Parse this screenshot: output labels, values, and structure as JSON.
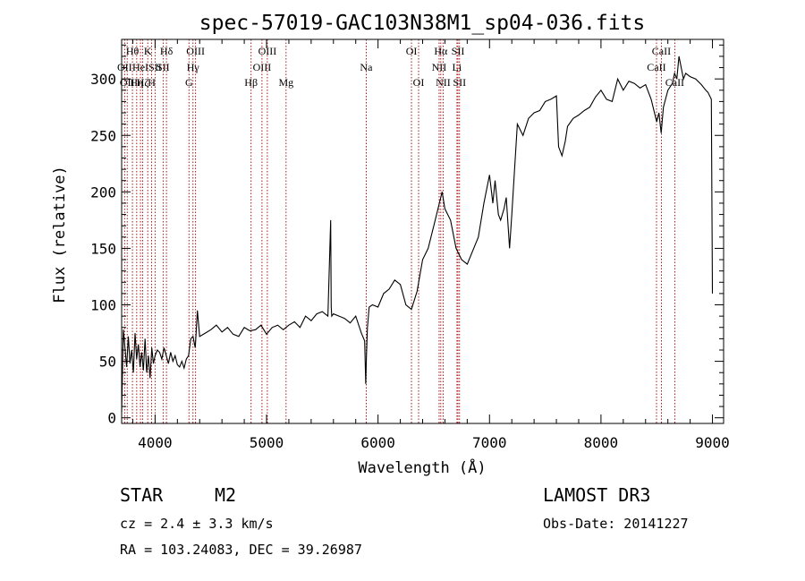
{
  "chart_data": {
    "type": "line",
    "title": "spec-57019-GAC103N38M1_sp04-036.fits",
    "xlabel": "Wavelength (Å)",
    "ylabel": "Flux (relative)",
    "xlim": [
      3700,
      9100
    ],
    "ylim": [
      -5,
      335
    ],
    "x_ticks": [
      4000,
      5000,
      6000,
      7000,
      8000,
      9000
    ],
    "y_ticks": [
      0,
      50,
      100,
      150,
      200,
      250,
      300
    ],
    "series": [
      {
        "name": "flux",
        "x": [
          3700,
          3715,
          3730,
          3745,
          3760,
          3775,
          3790,
          3805,
          3820,
          3835,
          3850,
          3865,
          3880,
          3895,
          3910,
          3925,
          3940,
          3955,
          3970,
          3985,
          4000,
          4020,
          4040,
          4060,
          4080,
          4100,
          4120,
          4140,
          4160,
          4180,
          4200,
          4220,
          4240,
          4260,
          4280,
          4300,
          4320,
          4340,
          4360,
          4380,
          4400,
          4450,
          4500,
          4550,
          4600,
          4650,
          4700,
          4750,
          4800,
          4850,
          4900,
          4950,
          5000,
          5050,
          5100,
          5150,
          5200,
          5250,
          5300,
          5350,
          5400,
          5450,
          5500,
          5550,
          5575,
          5580,
          5585,
          5600,
          5650,
          5700,
          5750,
          5800,
          5850,
          5880,
          5890,
          5896,
          5905,
          5920,
          5950,
          6000,
          6050,
          6100,
          6150,
          6200,
          6250,
          6300,
          6350,
          6400,
          6450,
          6500,
          6550,
          6575,
          6600,
          6650,
          6700,
          6750,
          6800,
          6850,
          6900,
          6950,
          7000,
          7030,
          7050,
          7080,
          7100,
          7130,
          7150,
          7180,
          7200,
          7250,
          7300,
          7350,
          7400,
          7450,
          7500,
          7550,
          7600,
          7620,
          7650,
          7680,
          7700,
          7750,
          7800,
          7850,
          7900,
          7950,
          8000,
          8050,
          8100,
          8150,
          8200,
          8250,
          8300,
          8350,
          8400,
          8450,
          8500,
          8520,
          8540,
          8560,
          8600,
          8640,
          8660,
          8680,
          8700,
          8720,
          8740,
          8760,
          8800,
          8850,
          8900,
          8940,
          8960,
          8990,
          9000
        ],
        "values": [
          5,
          78,
          62,
          45,
          72,
          48,
          60,
          40,
          75,
          52,
          65,
          45,
          58,
          42,
          70,
          40,
          55,
          35,
          62,
          48,
          55,
          60,
          58,
          52,
          62,
          55,
          48,
          58,
          50,
          55,
          47,
          45,
          50,
          44,
          52,
          55,
          70,
          72,
          62,
          95,
          72,
          75,
          78,
          82,
          76,
          80,
          74,
          72,
          80,
          77,
          78,
          82,
          74,
          80,
          82,
          78,
          82,
          85,
          80,
          90,
          86,
          92,
          94,
          90,
          175,
          98,
          90,
          92,
          90,
          88,
          84,
          90,
          75,
          68,
          30,
          55,
          80,
          98,
          100,
          98,
          110,
          114,
          122,
          118,
          100,
          96,
          112,
          140,
          150,
          170,
          190,
          200,
          185,
          175,
          150,
          140,
          136,
          148,
          160,
          190,
          215,
          190,
          210,
          180,
          175,
          185,
          195,
          150,
          180,
          260,
          250,
          265,
          270,
          272,
          280,
          282,
          285,
          240,
          232,
          245,
          258,
          265,
          268,
          272,
          275,
          284,
          290,
          282,
          280,
          300,
          290,
          298,
          296,
          292,
          295,
          282,
          262,
          270,
          252,
          275,
          290,
          296,
          305,
          300,
          320,
          310,
          300,
          305,
          302,
          300,
          295,
          290,
          288,
          282,
          110
        ]
      }
    ],
    "reference_lines": [
      {
        "x": 3727,
        "labels": [
          "OII"
        ],
        "rows": [
          1
        ]
      },
      {
        "x": 3750,
        "labels": [
          "OII"
        ],
        "rows": [
          2
        ]
      },
      {
        "x": 3797,
        "labels": [
          "Hθ"
        ],
        "rows": [
          0
        ]
      },
      {
        "x": 3835,
        "labels": [
          "Hη"
        ],
        "rows": [
          2
        ]
      },
      {
        "x": 3869,
        "labels": [
          "HeI"
        ],
        "rows": [
          1
        ]
      },
      {
        "x": 3889,
        "labels": [
          "Hζ"
        ],
        "rows": [
          2
        ]
      },
      {
        "x": 3934,
        "labels": [
          "K"
        ],
        "rows": [
          0
        ]
      },
      {
        "x": 3969,
        "labels": [
          "H"
        ],
        "rows": [
          2
        ]
      },
      {
        "x": 4000,
        "labels": [
          "SII"
        ],
        "rows": [
          1
        ]
      },
      {
        "x": 4102,
        "labels": [
          "Hδ"
        ],
        "rows": [
          0
        ]
      },
      {
        "x": 4072,
        "labels": [
          "SII"
        ],
        "rows": [
          1
        ]
      },
      {
        "x": 4304,
        "labels": [
          "G"
        ],
        "rows": [
          2
        ]
      },
      {
        "x": 4340,
        "labels": [
          "Hγ"
        ],
        "rows": [
          1
        ]
      },
      {
        "x": 4363,
        "labels": [
          "OIII"
        ],
        "rows": [
          0
        ]
      },
      {
        "x": 4861,
        "labels": [
          "Hβ"
        ],
        "rows": [
          2
        ]
      },
      {
        "x": 4959,
        "labels": [
          "OIII"
        ],
        "rows": [
          1
        ]
      },
      {
        "x": 5007,
        "labels": [
          "OIII"
        ],
        "rows": [
          0
        ]
      },
      {
        "x": 5175,
        "labels": [
          "Mg"
        ],
        "rows": [
          2
        ]
      },
      {
        "x": 5894,
        "labels": [
          "Na"
        ],
        "rows": [
          1
        ]
      },
      {
        "x": 6300,
        "labels": [
          "OI"
        ],
        "rows": [
          0
        ]
      },
      {
        "x": 6364,
        "labels": [
          "OI"
        ],
        "rows": [
          2
        ]
      },
      {
        "x": 6548,
        "labels": [
          "NII"
        ],
        "rows": [
          1
        ]
      },
      {
        "x": 6563,
        "labels": [
          "Hα"
        ],
        "rows": [
          0
        ]
      },
      {
        "x": 6584,
        "labels": [
          "NII"
        ],
        "rows": [
          2
        ]
      },
      {
        "x": 6708,
        "labels": [
          "Li"
        ],
        "rows": [
          1
        ]
      },
      {
        "x": 6717,
        "labels": [
          "SII"
        ],
        "rows": [
          0
        ]
      },
      {
        "x": 6731,
        "labels": [
          "SII"
        ],
        "rows": [
          2
        ]
      },
      {
        "x": 8498,
        "labels": [
          "CaII"
        ],
        "rows": [
          1
        ]
      },
      {
        "x": 8542,
        "labels": [
          "CaII"
        ],
        "rows": [
          0
        ]
      },
      {
        "x": 8662,
        "labels": [
          "CaII"
        ],
        "rows": [
          2
        ]
      }
    ]
  },
  "info": {
    "class_label": "STAR",
    "subclass_label": "M2",
    "survey_label": "LAMOST DR3",
    "cz_text": "cz = 2.4 ± 3.3 km/s",
    "obs_date_text": "Obs-Date: 20141227",
    "coords_text": "RA = 103.24083, DEC =  39.26987"
  }
}
